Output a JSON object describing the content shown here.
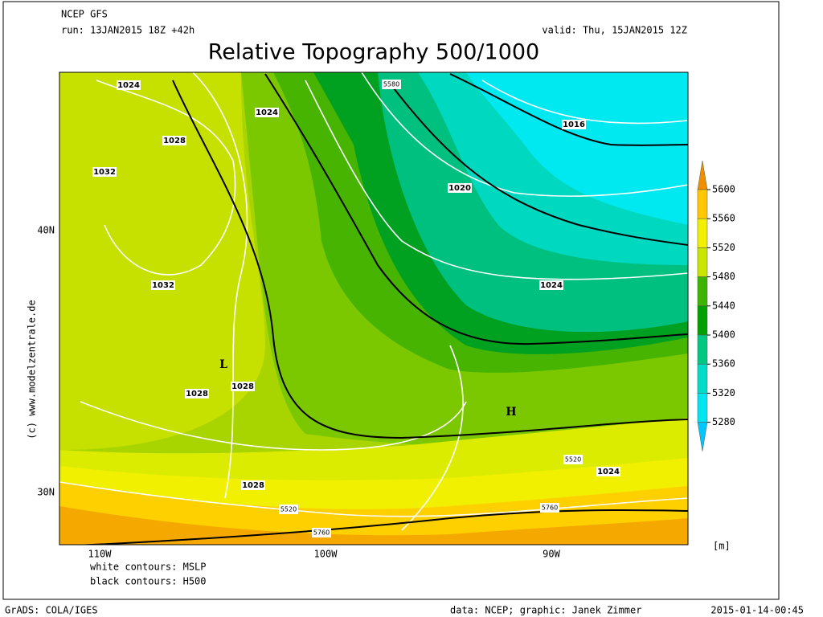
{
  "header": {
    "model": "NCEP GFS",
    "run": "run: 13JAN2015 18Z +42h",
    "valid": "valid: Thu, 15JAN2015 12Z",
    "title": "Relative Topography 500/1000"
  },
  "map": {
    "lat_labels": [
      "40N",
      "30N"
    ],
    "lon_labels": [
      "110W",
      "100W",
      "90W"
    ],
    "watermark": "(c) www.modelzentrale.de",
    "contour_labels": [
      "1024",
      "1024",
      "1028",
      "1032",
      "1032",
      "1028",
      "1028",
      "1028",
      "1016",
      "1020",
      "1024",
      "1024",
      "5580",
      "5520",
      "5520",
      "5760",
      "5760",
      "L",
      "H"
    ]
  },
  "colorbar": {
    "levels": [
      5600,
      5560,
      5520,
      5480,
      5440,
      5400,
      5360,
      5320,
      5280
    ],
    "unit": "[m]"
  },
  "legend": [
    "white contours: MSLP",
    "black contours: H500"
  ],
  "footer": {
    "left": "GrADS: COLA/IGES",
    "center": "data: NCEP; graphic: Janek Zimmer",
    "right": "2015-01-14-00:45"
  }
}
